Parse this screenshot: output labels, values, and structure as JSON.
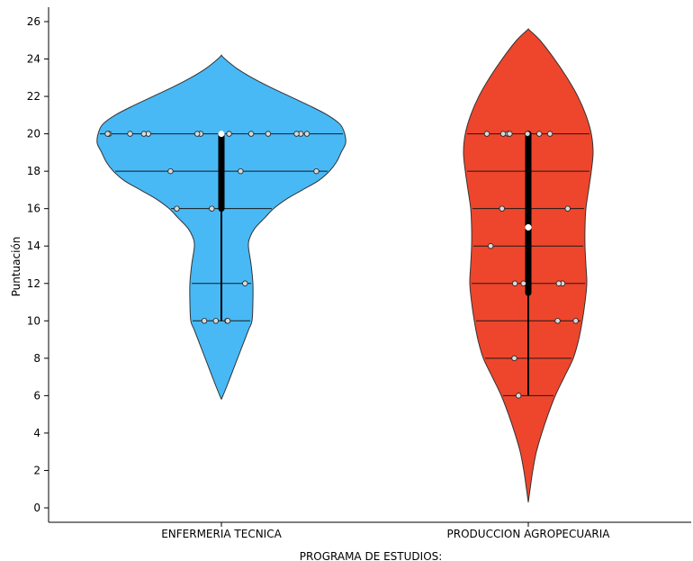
{
  "chart_data": {
    "type": "violin",
    "title": "",
    "xlabel": "PROGRAMA DE ESTUDIOS:",
    "ylabel": "Puntuación",
    "ylim": [
      -0.5,
      26.8
    ],
    "yticks": [
      0,
      2,
      4,
      6,
      8,
      10,
      12,
      14,
      16,
      18,
      20,
      22,
      24,
      26
    ],
    "grid": false,
    "categories": [
      "ENFERMERIA TECNICA",
      "PRODUCCION AGROPECUARIA"
    ],
    "groups": [
      {
        "name": "ENFERMERIA TECNICA",
        "color": "#48B9F5",
        "range": [
          5.8,
          24.2
        ],
        "median": 20,
        "q1": 16,
        "q3": 20,
        "whisker_low": 10,
        "whisker_high": 20,
        "density": [
          [
            5.8,
            0
          ],
          [
            6.5,
            6
          ],
          [
            7.5,
            14
          ],
          [
            8.5,
            22
          ],
          [
            9.5,
            30
          ],
          [
            10,
            34
          ],
          [
            11,
            35
          ],
          [
            12,
            35
          ],
          [
            13,
            33
          ],
          [
            14,
            30
          ],
          [
            14.5,
            32
          ],
          [
            15,
            38
          ],
          [
            15.5,
            48
          ],
          [
            16,
            58
          ],
          [
            16.5,
            72
          ],
          [
            17,
            90
          ],
          [
            17.5,
            108
          ],
          [
            18,
            120
          ],
          [
            18.5,
            128
          ],
          [
            19,
            133
          ],
          [
            19.5,
            138
          ],
          [
            20,
            137
          ],
          [
            20.5,
            132
          ],
          [
            21,
            118
          ],
          [
            21.5,
            98
          ],
          [
            22,
            76
          ],
          [
            22.5,
            54
          ],
          [
            23,
            34
          ],
          [
            23.5,
            17
          ],
          [
            24,
            4
          ],
          [
            24.2,
            0
          ]
        ],
        "points": [
          20,
          20,
          20,
          20,
          20,
          20,
          20,
          20,
          20,
          20,
          20,
          20,
          20,
          18,
          18,
          18,
          16,
          16,
          12,
          10,
          10,
          10,
          10
        ],
        "levels": [
          20,
          18,
          16,
          12,
          10
        ]
      },
      {
        "name": "PRODUCCION AGROPECUARIA",
        "color": "#EE462C",
        "range": [
          0.3,
          25.6
        ],
        "median": 15,
        "q1": 11.5,
        "q3": 20,
        "whisker_low": 6,
        "whisker_high": 20,
        "density": [
          [
            0.3,
            0
          ],
          [
            1,
            2
          ],
          [
            2,
            5
          ],
          [
            3,
            9
          ],
          [
            4,
            15
          ],
          [
            5,
            22
          ],
          [
            6,
            30
          ],
          [
            7,
            40
          ],
          [
            8,
            50
          ],
          [
            9,
            56
          ],
          [
            10,
            60
          ],
          [
            11,
            63
          ],
          [
            12,
            65
          ],
          [
            13,
            64
          ],
          [
            14,
            63
          ],
          [
            15,
            63
          ],
          [
            16,
            64
          ],
          [
            17,
            67
          ],
          [
            18,
            70
          ],
          [
            19,
            72
          ],
          [
            20,
            70
          ],
          [
            21,
            64
          ],
          [
            22,
            55
          ],
          [
            23,
            43
          ],
          [
            24,
            29
          ],
          [
            25,
            13
          ],
          [
            25.6,
            0
          ]
        ],
        "points": [
          20,
          20,
          20,
          20,
          20,
          20,
          20,
          16,
          16,
          14,
          12,
          12,
          12,
          12,
          10,
          10,
          8,
          6
        ],
        "levels": [
          20,
          18,
          16,
          14,
          12,
          10,
          8,
          6
        ]
      }
    ]
  }
}
